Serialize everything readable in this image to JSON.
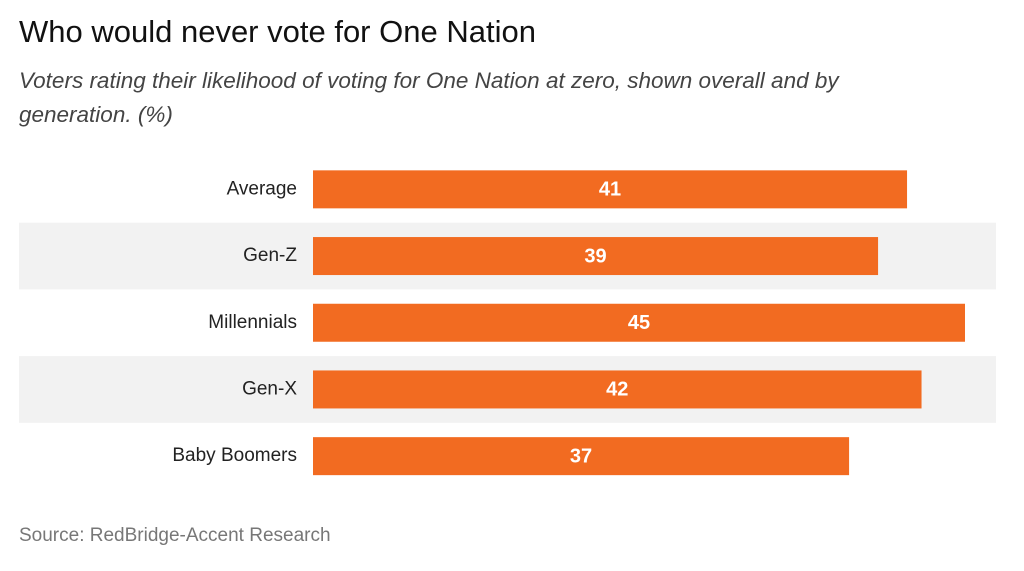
{
  "chart_data": {
    "type": "bar",
    "orientation": "horizontal",
    "title": "Who would never vote for One Nation",
    "subtitle": "Voters rating their likelihood of voting for One Nation at zero, shown overall and by generation. (%)",
    "source": "Source: RedBridge-Accent Research",
    "categories": [
      "Average",
      "Gen-Z",
      "Millennials",
      "Gen-X",
      "Baby Boomers"
    ],
    "values": [
      41,
      39,
      45,
      42,
      37
    ],
    "color": "#f26b21"
  }
}
